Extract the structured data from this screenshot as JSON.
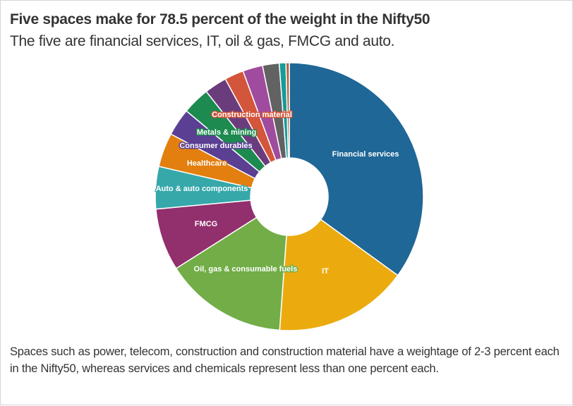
{
  "header": {
    "title": "Five spaces make for 78.5 percent of the weight in the Nifty50",
    "subtitle": "The five are financial services, IT, oil & gas, FMCG and auto."
  },
  "footer": {
    "note": "Spaces such as power, telecom, construction and construction material have a weightage of 2-3 percent each in the Nifty50, whereas services and chemicals represent less than one percent each."
  },
  "chart_data": {
    "type": "pie",
    "variant": "donut",
    "title": "Five spaces make for 78.5 percent of the weight in the Nifty50",
    "subtitle": "The five are financial services, IT, oil & gas, FMCG and auto.",
    "unit": "percent of Nifty50 weight (estimated from slice angles)",
    "start": "top, clockwise",
    "slices": [
      {
        "name": "Financial services",
        "value": 34.9,
        "color": "#1f6796",
        "label": "Financial services",
        "label_stroke": "#1f6796"
      },
      {
        "name": "IT",
        "value": 16.1,
        "color": "#ebab0f",
        "label": "IT",
        "label_stroke": "#ebab0f"
      },
      {
        "name": "Oil, gas & consumable fuels",
        "value": 14.8,
        "color": "#72ad47",
        "label": "Oil, gas & consumable fuels",
        "label_stroke": "#72ad47"
      },
      {
        "name": "FMCG",
        "value": 7.5,
        "color": "#922f6d",
        "label": "FMCG",
        "label_stroke": "#922f6d"
      },
      {
        "name": "Auto & auto components",
        "value": 5.1,
        "color": "#36a8aa",
        "label": "Auto & auto components",
        "label_stroke": "#36a8aa"
      },
      {
        "name": "Healthcare",
        "value": 4.1,
        "color": "#e27f0f",
        "label": "Healthcare",
        "label_stroke": "#e27f0f"
      },
      {
        "name": "Consumer durables",
        "value": 3.3,
        "color": "#5a3f93",
        "label": "Consumer durables",
        "label_stroke": "#5a3f93"
      },
      {
        "name": "Metals & mining",
        "value": 3.3,
        "color": "#1d8a4f",
        "label": "Metals & mining",
        "label_stroke": "#1d8a4f"
      },
      {
        "name": "Slice 9",
        "value": 2.7,
        "color": "#6b3c7c",
        "label": "",
        "label_stroke": ""
      },
      {
        "name": "Construction material",
        "value": 2.3,
        "color": "#d3553b",
        "label": "Construction material",
        "label_stroke": "#d3553b"
      },
      {
        "name": "Slice 11",
        "value": 2.4,
        "color": "#a04c9e",
        "label": "",
        "label_stroke": ""
      },
      {
        "name": "Slice 12",
        "value": 2.0,
        "color": "#626262",
        "label": "",
        "label_stroke": ""
      },
      {
        "name": "Slice 13",
        "value": 0.8,
        "color": "#159b98",
        "label": "",
        "label_stroke": ""
      },
      {
        "name": "Slice 14",
        "value": 0.4,
        "color": "#b4653a",
        "label": "",
        "label_stroke": ""
      }
    ],
    "legend": "none (direct labels)"
  }
}
